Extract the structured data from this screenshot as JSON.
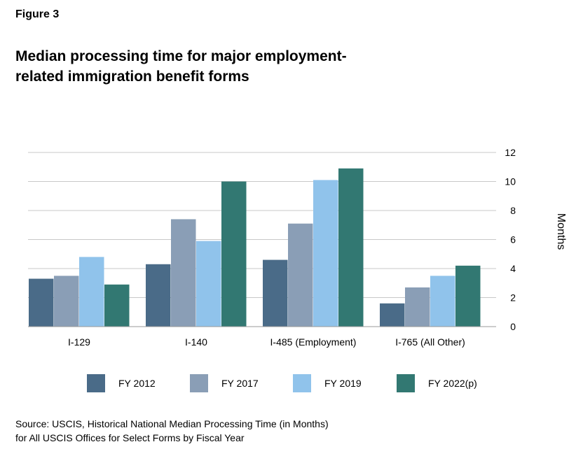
{
  "figure_label": "Figure 3",
  "title_lines": [
    "Median processing time for major employment-",
    "related immigration benefit forms"
  ],
  "source_lines": [
    "Source: USCIS, Historical National Median Processing Time (in Months)",
    "for All USCIS Offices for Select Forms by Fiscal Year"
  ],
  "colors": {
    "FY 2012": "#4a6b88",
    "FY 2017": "#8a9eb6",
    "FY 2019": "#90c3eb",
    "FY 2022(p)": "#327872"
  },
  "chart_data": {
    "type": "bar",
    "categories": [
      "I-129",
      "I-140",
      "I-485 (Employment)",
      "I-765 (All Other)"
    ],
    "series": [
      {
        "name": "FY 2012",
        "values": [
          3.3,
          4.3,
          4.6,
          1.6
        ]
      },
      {
        "name": "FY 2017",
        "values": [
          3.5,
          7.4,
          7.1,
          2.7
        ]
      },
      {
        "name": "FY 2019",
        "values": [
          4.8,
          5.9,
          10.1,
          3.5
        ]
      },
      {
        "name": "FY 2022(p)",
        "values": [
          2.9,
          10.0,
          10.9,
          4.2
        ]
      }
    ],
    "ylabel": "Months",
    "ylim": [
      0,
      12
    ],
    "yticks": [
      0,
      2,
      4,
      6,
      8,
      10,
      12
    ],
    "grid": true,
    "y_axis_position": "right",
    "legend_position": "bottom"
  }
}
